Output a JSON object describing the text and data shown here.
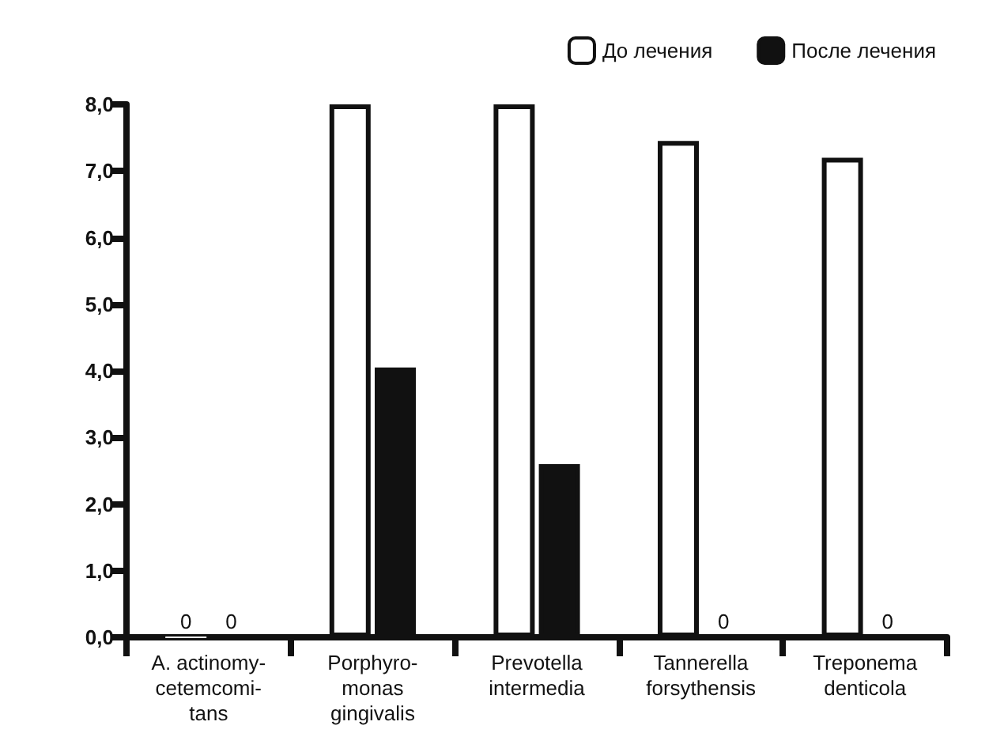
{
  "chart_data": {
    "type": "bar",
    "categories": [
      "A. actinomy-\ncetemcomi-\ntans",
      "Porphyro-\nmonas\ngingivalis",
      "Prevotella\nintermedia",
      "Tannerella\nforsythensis",
      "Treponema\ndenticola"
    ],
    "series": [
      {
        "name": "До лечения",
        "color": "#ffffff",
        "values": [
          0,
          8.0,
          8.0,
          7.45,
          7.2
        ],
        "value_labels": [
          "0",
          null,
          null,
          null,
          null
        ]
      },
      {
        "name": "После лечения",
        "color": "#111111",
        "values": [
          0,
          4.05,
          2.6,
          0,
          0
        ],
        "value_labels": [
          "0",
          null,
          null,
          "0",
          "0"
        ]
      }
    ],
    "ylim": [
      0,
      8
    ],
    "yticks": [
      {
        "value": 0,
        "label": "0,0"
      },
      {
        "value": 1,
        "label": "1,0"
      },
      {
        "value": 2,
        "label": "2,0"
      },
      {
        "value": 3,
        "label": "3,0"
      },
      {
        "value": 4,
        "label": "4,0"
      },
      {
        "value": 5,
        "label": "5,0"
      },
      {
        "value": 6,
        "label": "6,0"
      },
      {
        "value": 7,
        "label": "7,0"
      },
      {
        "value": 8,
        "label": "8,0"
      }
    ],
    "grid": false,
    "legend": "top right"
  }
}
